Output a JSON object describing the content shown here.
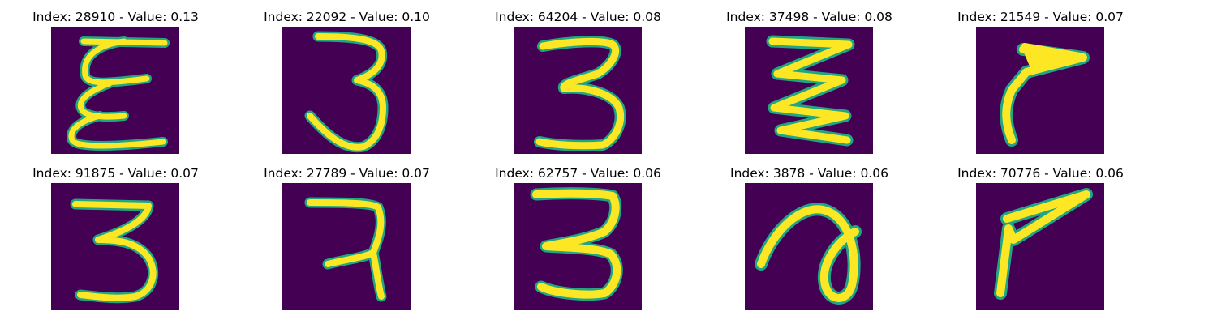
{
  "colors": {
    "background": "#440154",
    "stroke": "#fde725",
    "edge": "#21a685"
  },
  "items": [
    {
      "title": "Index: 28910 - Value: 0.13",
      "icon": "digit-three-e-shape-icon"
    },
    {
      "title": "Index: 22092 - Value: 0.10",
      "icon": "digit-three-icon"
    },
    {
      "title": "Index: 64204 - Value: 0.08",
      "icon": "digit-three-icon"
    },
    {
      "title": "Index: 37498 - Value: 0.08",
      "icon": "digit-three-zigzag-icon"
    },
    {
      "title": "Index: 21549 - Value: 0.07",
      "icon": "digit-seven-like-icon"
    },
    {
      "title": "Index: 91875 - Value: 0.07",
      "icon": "digit-three-icon"
    },
    {
      "title": "Index: 27789 - Value: 0.07",
      "icon": "digit-three-icon"
    },
    {
      "title": "Index: 62757 - Value: 0.06",
      "icon": "digit-three-icon"
    },
    {
      "title": "Index: 3878 - Value: 0.06",
      "icon": "digit-loop-icon"
    },
    {
      "title": "Index: 70776 - Value: 0.06",
      "icon": "digit-seven-like-icon"
    }
  ]
}
